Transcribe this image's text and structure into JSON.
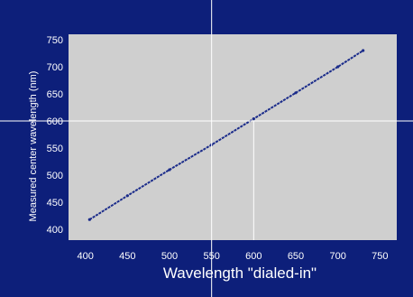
{
  "chart_data": {
    "type": "line",
    "title": "",
    "xlabel": "Wavelength \"dialed-in\"",
    "ylabel": "Measured center wavelength (nm)",
    "x_ticks": [
      400,
      450,
      500,
      550,
      600,
      650,
      700,
      750
    ],
    "y_ticks": [
      400,
      450,
      500,
      550,
      600,
      650,
      700,
      750
    ],
    "xlim": [
      380,
      770
    ],
    "ylim": [
      380,
      760
    ],
    "grid": false,
    "series": [
      {
        "values_x": [
          405,
          450,
          500,
          550,
          600,
          650,
          700,
          730
        ],
        "values_y": [
          418,
          462,
          510,
          556,
          604,
          652,
          700,
          730
        ]
      }
    ],
    "markers": [
      {
        "axis": "x",
        "value": 600
      },
      {
        "axis": "y",
        "value": 600
      }
    ]
  },
  "colors": {
    "background": "#0d1f7a",
    "plot_area": "#cfcfcf",
    "line": "#1a2b8a",
    "text": "#ffffff"
  }
}
